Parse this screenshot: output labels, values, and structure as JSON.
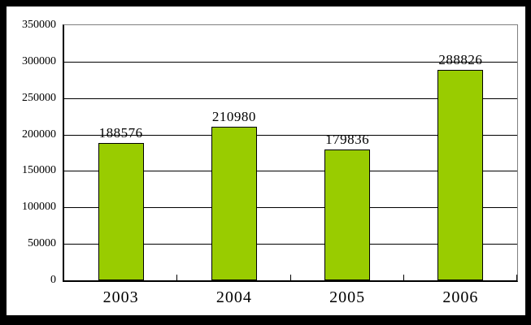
{
  "chart_data": {
    "type": "bar",
    "categories": [
      "2003",
      "2004",
      "2005",
      "2006"
    ],
    "values": [
      188576,
      210980,
      179836,
      288826
    ],
    "value_labels": [
      "188576",
      "210980",
      "179836",
      "288826"
    ],
    "title": "",
    "xlabel": "",
    "ylabel": "",
    "ylim": [
      0,
      350000
    ],
    "ytick_step": 50000,
    "ytick_labels": [
      "0",
      "50000",
      "100000",
      "150000",
      "200000",
      "250000",
      "300000",
      "350000"
    ],
    "grid": true,
    "legend_position": "none",
    "ticks_between_categories": true,
    "colors": {
      "frame": "#000000",
      "plot_background": "#FFFFFF",
      "plot_border": "#808080",
      "axis_line": "#000000",
      "gridline": "#000000",
      "bar_fill": "#99CC00",
      "bar_border": "#000000",
      "text": "#000000"
    }
  }
}
